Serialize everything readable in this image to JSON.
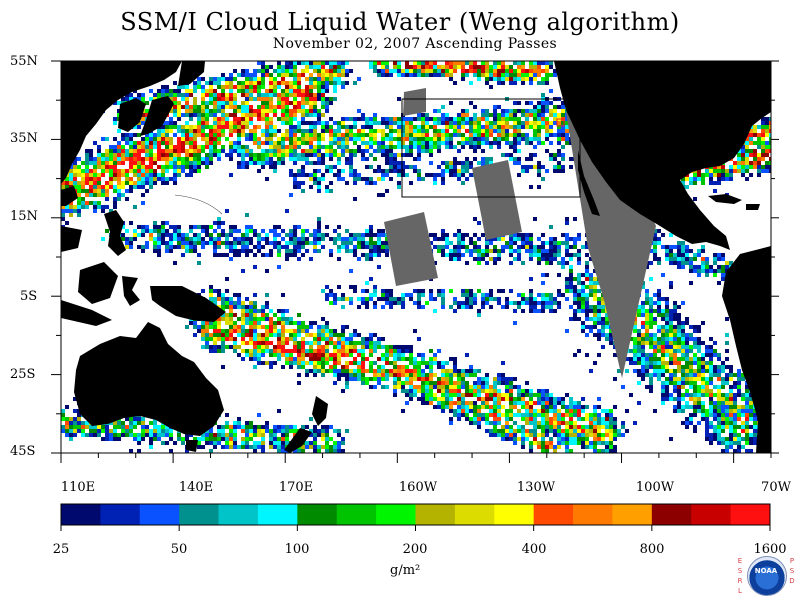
{
  "title": "SSM/I Cloud Liquid Water (Weng algorithm)",
  "subtitle": "November 02, 2007  Ascending Passes",
  "latitude_labels": [
    "55N",
    "35N",
    "15N",
    "5S",
    "25S",
    "45S"
  ],
  "longitude_labels": [
    "110E",
    "140E",
    "170E",
    "160W",
    "130W",
    "100W",
    "70W"
  ],
  "colorbar": {
    "colors": [
      "#000a6e",
      "#0022b4",
      "#0a52ff",
      "#00908e",
      "#00c4c8",
      "#00f6ff",
      "#008a00",
      "#00c400",
      "#00f600",
      "#b4b400",
      "#dcdc00",
      "#ffff00",
      "#ff4a00",
      "#ff7a00",
      "#ffa000",
      "#8c0000",
      "#c80000",
      "#ff1010"
    ],
    "tick_labels": [
      "25",
      "50",
      "100",
      "200",
      "400",
      "800",
      "1600"
    ],
    "units": "g/m²"
  },
  "logo": {
    "text": "NOAA",
    "left_letters": [
      "E",
      "S",
      "R",
      "L"
    ],
    "right_letters": [
      "P",
      "S",
      "D"
    ]
  },
  "colors": {
    "land": "#000000",
    "no_data": "#666666",
    "clear": "#ffffff"
  }
}
